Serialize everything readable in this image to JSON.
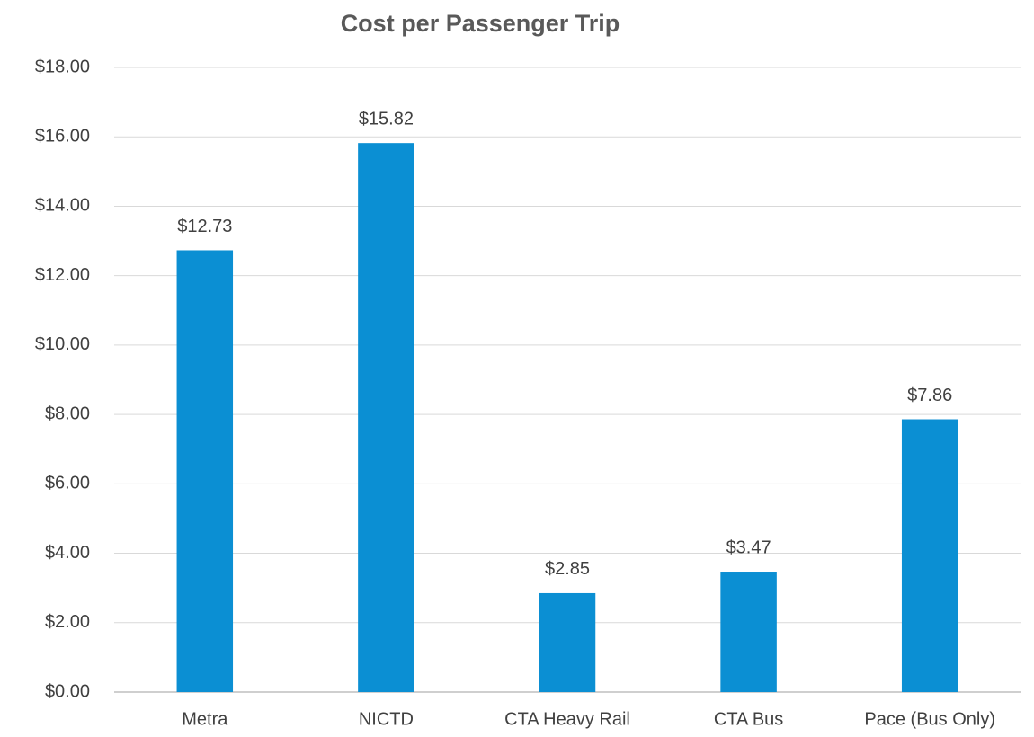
{
  "chart_data": {
    "type": "bar",
    "title": "Cost per Passenger Trip",
    "categories": [
      "Metra",
      "NICTD",
      "CTA Heavy Rail",
      "CTA Bus",
      "Pace (Bus Only)"
    ],
    "values": [
      12.73,
      15.82,
      2.85,
      3.47,
      7.86
    ],
    "value_labels": [
      "$12.73",
      "$15.82",
      "$2.85",
      "$3.47",
      "$7.86"
    ],
    "color": "#0b8fd3",
    "ylim": [
      0,
      18
    ],
    "yticks": [
      {
        "value": 0,
        "label": "$0.00"
      },
      {
        "value": 2,
        "label": "$2.00"
      },
      {
        "value": 4,
        "label": "$4.00"
      },
      {
        "value": 6,
        "label": "$6.00"
      },
      {
        "value": 8,
        "label": "$8.00"
      },
      {
        "value": 10,
        "label": "$10.00"
      },
      {
        "value": 12,
        "label": "$12.00"
      },
      {
        "value": 14,
        "label": "$14.00"
      },
      {
        "value": 16,
        "label": "$16.00"
      },
      {
        "value": 18,
        "label": "$18.00"
      }
    ],
    "grid": true
  }
}
